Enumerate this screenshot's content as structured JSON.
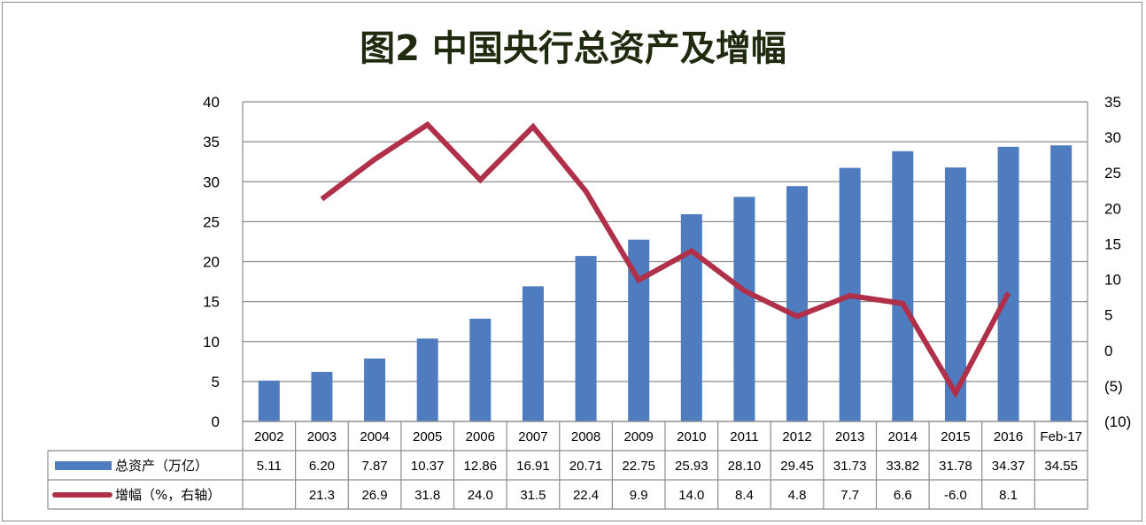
{
  "title": "图2   中国央行总资产及增幅",
  "chart_data": {
    "type": "bar",
    "categories": [
      "2002",
      "2003",
      "2004",
      "2005",
      "2006",
      "2007",
      "2008",
      "2009",
      "2010",
      "2011",
      "2012",
      "2013",
      "2014",
      "2015",
      "2016",
      "Feb-17"
    ],
    "series": [
      {
        "name": "总资产（万亿）",
        "type": "bar",
        "axis": "left",
        "values": [
          5.11,
          6.2,
          7.87,
          10.37,
          12.86,
          16.91,
          20.71,
          22.75,
          25.93,
          28.1,
          29.45,
          31.73,
          33.82,
          31.78,
          34.37,
          34.55
        ],
        "labels": [
          "5.11",
          "6.20",
          "7.87",
          "10.37",
          "12.86",
          "16.91",
          "20.71",
          "22.75",
          "25.93",
          "28.10",
          "29.45",
          "31.73",
          "33.82",
          "31.78",
          "34.37",
          "34.55"
        ]
      },
      {
        "name": "增幅（%，右轴）",
        "type": "line",
        "axis": "right",
        "values": [
          null,
          21.3,
          26.9,
          31.8,
          24.0,
          31.5,
          22.4,
          9.9,
          14.0,
          8.4,
          4.8,
          7.7,
          6.6,
          -6.0,
          8.1,
          null
        ],
        "labels": [
          "",
          "21.3",
          "26.9",
          "31.8",
          "24.0",
          "31.5",
          "22.4",
          "9.9",
          "14.0",
          "8.4",
          "4.8",
          "7.7",
          "6.6",
          "-6.0",
          "8.1",
          ""
        ]
      }
    ],
    "left_axis": {
      "range": [
        0,
        40
      ],
      "ticks": [
        "0",
        "5",
        "10",
        "15",
        "20",
        "25",
        "30",
        "35",
        "40"
      ]
    },
    "right_axis": {
      "range": [
        -10,
        35
      ],
      "ticks": [
        "(10)",
        "(5)",
        "0",
        "5",
        "10",
        "15",
        "20",
        "25",
        "30",
        "35"
      ]
    },
    "grid": true,
    "legend": "data-table",
    "colors": {
      "bar": "#4f7bbf",
      "line": "#b0304a",
      "grid": "#8c8c8c",
      "text": "#000000"
    }
  }
}
